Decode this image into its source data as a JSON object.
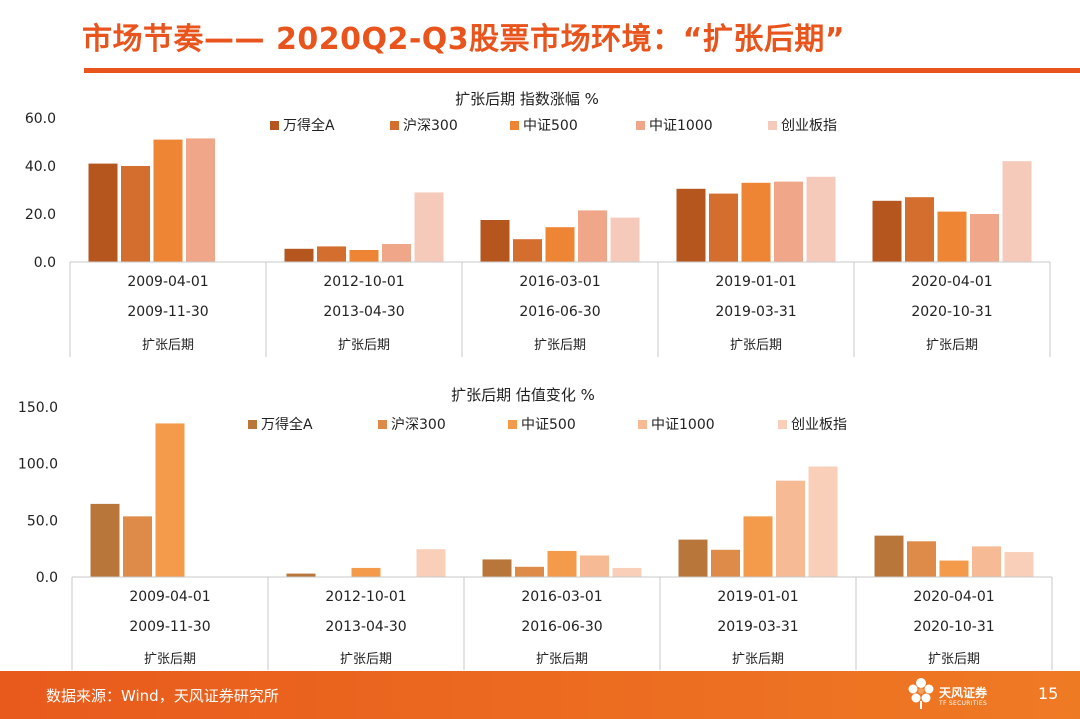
{
  "header": {
    "title": "市场节奏—— 2020Q2-Q3股票市场环境：“扩张后期”"
  },
  "footer": {
    "source": "数据来源：Wind，天风证券研究所",
    "logo_text": "天风证券",
    "logo_sub": "TF SECURITIES",
    "page_number": "15",
    "colors": {
      "bar": "#e8541c"
    }
  },
  "chart_data": [
    {
      "type": "bar",
      "title": "扩张后期 指数涨幅 %",
      "categories": [
        [
          "2009-04-01",
          "2009-11-30",
          "扩张后期"
        ],
        [
          "2012-10-01",
          "2013-04-30",
          "扩张后期"
        ],
        [
          "2016-03-01",
          "2016-06-30",
          "扩张后期"
        ],
        [
          "2019-01-01",
          "2019-03-31",
          "扩张后期"
        ],
        [
          "2020-04-01",
          "2020-10-31",
          "扩张后期"
        ]
      ],
      "series": [
        {
          "name": "万得全A",
          "color": "#b5561f",
          "values": [
            41.0,
            5.5,
            17.5,
            30.5,
            25.5
          ]
        },
        {
          "name": "沪深300",
          "color": "#d46e2f",
          "values": [
            40.0,
            6.5,
            9.5,
            28.5,
            27.0
          ]
        },
        {
          "name": "中证500",
          "color": "#ee8535",
          "values": [
            51.0,
            5.0,
            14.5,
            33.0,
            21.0
          ]
        },
        {
          "name": "中证1000",
          "color": "#f0a789",
          "values": [
            51.5,
            7.5,
            21.5,
            33.5,
            20.0
          ]
        },
        {
          "name": "创业板指",
          "color": "#f6cabb",
          "values": [
            null,
            29.0,
            18.5,
            35.5,
            42.0
          ]
        }
      ],
      "ylim": [
        0,
        60
      ],
      "yticks": [
        "0.0",
        "20.0",
        "40.0",
        "60.0"
      ],
      "legend": "top"
    },
    {
      "type": "bar",
      "title": "扩张后期 估值变化 %",
      "categories": [
        [
          "2009-04-01",
          "2009-11-30",
          "扩张后期"
        ],
        [
          "2012-10-01",
          "2013-04-30",
          "扩张后期"
        ],
        [
          "2016-03-01",
          "2016-06-30",
          "扩张后期"
        ],
        [
          "2019-01-01",
          "2019-03-31",
          "扩张后期"
        ],
        [
          "2020-04-01",
          "2020-10-31",
          "扩张后期"
        ]
      ],
      "series": [
        {
          "name": "万得全A",
          "color": "#b9763a",
          "values": [
            64.5,
            3.0,
            15.5,
            33.0,
            36.5
          ]
        },
        {
          "name": "沪深300",
          "color": "#de8a48",
          "values": [
            53.5,
            null,
            9.0,
            24.0,
            31.5
          ]
        },
        {
          "name": "中证500",
          "color": "#f49a4b",
          "values": [
            135.5,
            8.0,
            23.0,
            53.5,
            14.5
          ]
        },
        {
          "name": "中证1000",
          "color": "#f6bb95",
          "values": [
            null,
            null,
            19.0,
            85.0,
            27.0
          ]
        },
        {
          "name": "创业板指",
          "color": "#f9cfb9",
          "values": [
            null,
            24.5,
            8.0,
            97.5,
            22.0
          ]
        }
      ],
      "ylim": [
        0,
        150
      ],
      "yticks": [
        "0.0",
        "50.0",
        "100.0",
        "150.0"
      ],
      "legend": "top"
    }
  ]
}
